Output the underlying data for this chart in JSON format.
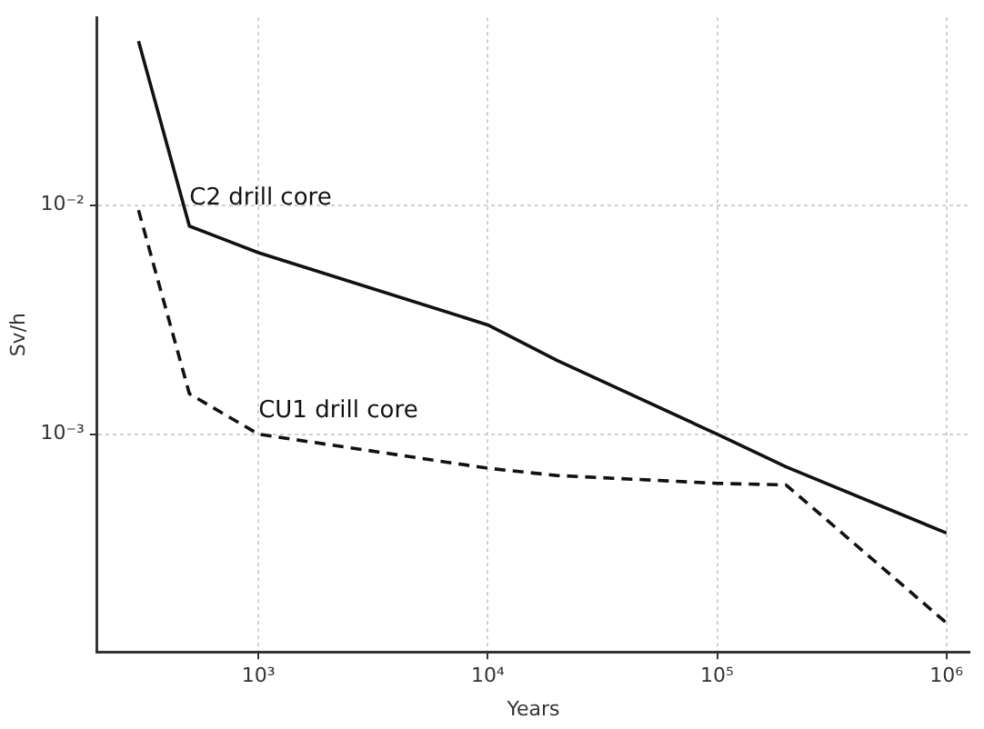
{
  "chart_data": {
    "type": "line",
    "xlabel": "Years",
    "ylabel": "Sv/h",
    "log": "xy",
    "grid": true,
    "legend": false,
    "marker": "none",
    "xlim": [
      198,
      1260000
    ],
    "ylim": [
      0.000112,
      0.066
    ],
    "xticks": [
      {
        "value": 1000,
        "label": "10³"
      },
      {
        "value": 10000,
        "label": "10⁴"
      },
      {
        "value": 100000,
        "label": "10⁵"
      },
      {
        "value": 1000000,
        "label": "10⁶"
      }
    ],
    "yticks": [
      {
        "value": 0.001,
        "label": "10⁻³"
      },
      {
        "value": 0.01,
        "label": "10⁻²"
      }
    ],
    "series": [
      {
        "color": "#111111",
        "line_style": "solid",
        "x": [
          300,
          500,
          1000,
          10000,
          20000,
          100000,
          200000,
          1000000
        ],
        "values": [
          0.052,
          0.0081,
          0.0062,
          0.003,
          0.0021,
          0.001,
          0.00072,
          0.00037
        ]
      },
      {
        "color": "#111111",
        "line_style": "dashed",
        "x": [
          300,
          500,
          1000,
          10000,
          20000,
          100000,
          200000,
          1000000
        ],
        "values": [
          0.0095,
          0.0015,
          0.001,
          0.00071,
          0.00066,
          0.00061,
          0.0006,
          0.00015
        ]
      }
    ],
    "annotations": [
      {
        "text": "C2 drill core",
        "x": 500,
        "y": 0.0095
      },
      {
        "text": "CU1 drill core",
        "x": 1000,
        "y": 0.00112
      }
    ]
  }
}
